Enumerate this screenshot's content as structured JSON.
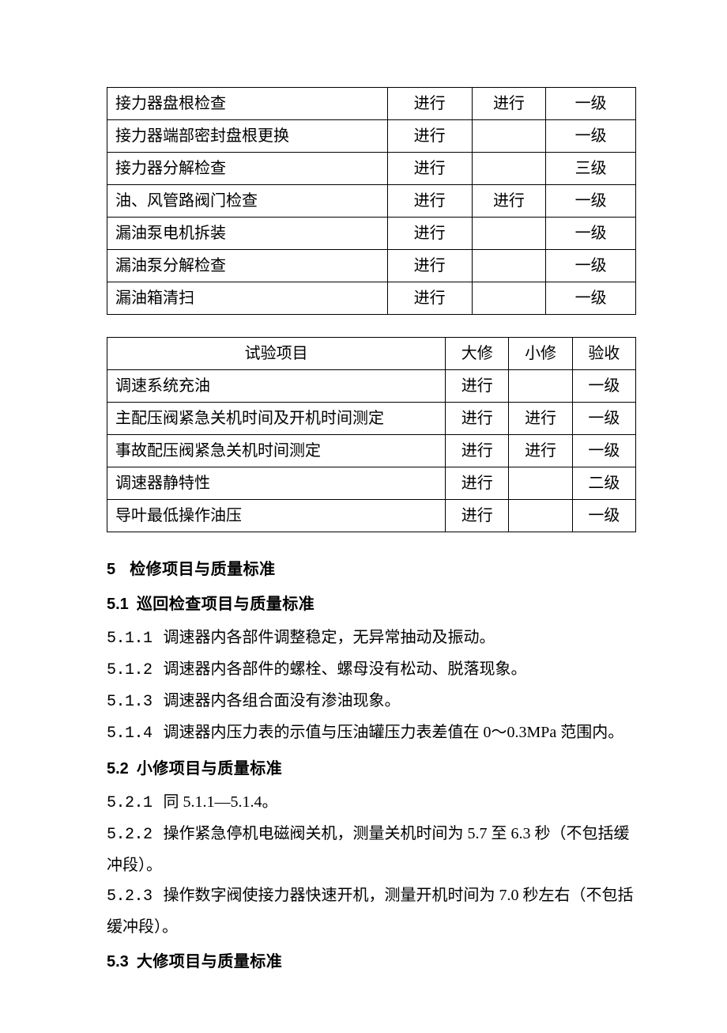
{
  "table1": {
    "rows": [
      {
        "c1": "接力器盘根检查",
        "c2": "进行",
        "c3": "进行",
        "c4": "一级"
      },
      {
        "c1": "接力器端部密封盘根更换",
        "c2": "进行",
        "c3": "",
        "c4": "一级"
      },
      {
        "c1": "接力器分解检查",
        "c2": "进行",
        "c3": "",
        "c4": "三级"
      },
      {
        "c1": "油、风管路阀门检查",
        "c2": "进行",
        "c3": "进行",
        "c4": "一级"
      },
      {
        "c1": "漏油泵电机拆装",
        "c2": "进行",
        "c3": "",
        "c4": "一级"
      },
      {
        "c1": "漏油泵分解检查",
        "c2": "进行",
        "c3": "",
        "c4": "一级"
      },
      {
        "c1": "漏油箱清扫",
        "c2": "进行",
        "c3": "",
        "c4": "一级"
      }
    ]
  },
  "table2": {
    "header": {
      "c1": "试验项目",
      "c2": "大修",
      "c3": "小修",
      "c4": "验收"
    },
    "rows": [
      {
        "c1": "调速系统充油",
        "c2": "进行",
        "c3": "",
        "c4": "一级"
      },
      {
        "c1": "主配压阀紧急关机时间及开机时间测定",
        "c2": "进行",
        "c3": "进行",
        "c4": "一级"
      },
      {
        "c1": "事故配压阀紧急关机时间测定",
        "c2": "进行",
        "c3": "进行",
        "c4": "一级"
      },
      {
        "c1": "调速器静特性",
        "c2": "进行",
        "c3": "",
        "c4": "二级"
      },
      {
        "c1": "导叶最低操作油压",
        "c2": "进行",
        "c3": "",
        "c4": "一级"
      }
    ]
  },
  "section5": {
    "num": "5",
    "title": "检修项目与质量标准",
    "s51": {
      "num": "5.1",
      "title": "巡回检查项目与质量标准",
      "items": [
        {
          "num": "5.1.1",
          "text": "调速器内各部件调整稳定，无异常抽动及振动。"
        },
        {
          "num": "5.1.2",
          "text": "调速器内各部件的螺栓、螺母没有松动、脱落现象。"
        },
        {
          "num": "5.1.3",
          "text": "调速器内各组合面没有渗油现象。"
        },
        {
          "num": "5.1.4",
          "text": "调速器内压力表的示值与压油罐压力表差值在 0～0.3MPa 范围内。"
        }
      ]
    },
    "s52": {
      "num": "5.2",
      "title": "小修项目与质量标准",
      "items": [
        {
          "num": "5.2.1",
          "text": "同 5.1.1—5.1.4。"
        },
        {
          "num": "5.2.2",
          "text": "操作紧急停机电磁阀关机，测量关机时间为 5.7 至 6.3 秒（不包括缓冲段）。"
        },
        {
          "num": "5.2.3",
          "text": "操作数字阀使接力器快速开机，测量开机时间为 7.0 秒左右（不包括缓冲段）。"
        }
      ]
    },
    "s53": {
      "num": "5.3",
      "title": "大修项目与质量标准"
    }
  }
}
